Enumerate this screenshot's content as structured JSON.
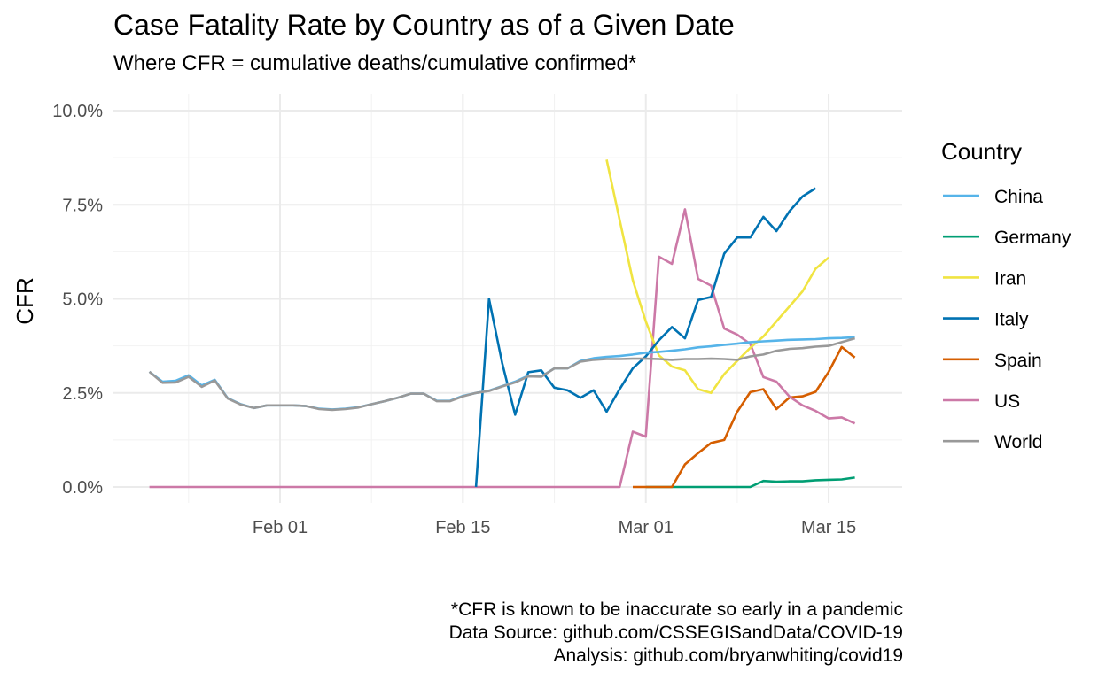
{
  "chart_data": {
    "type": "line",
    "title": "Case Fatality Rate by Country as of a Given Date",
    "subtitle": "Where CFR = cumulative deaths/cumulative confirmed*",
    "xlabel": "",
    "ylabel": "CFR",
    "x_ticks": [
      {
        "day": 32,
        "label": "Feb 01"
      },
      {
        "day": 46,
        "label": "Feb 15"
      },
      {
        "day": 60,
        "label": "Mar 01"
      },
      {
        "day": 74,
        "label": "Mar 15"
      }
    ],
    "y_ticks": [
      {
        "value": 0.0,
        "label": "0.0%"
      },
      {
        "value": 2.5,
        "label": "2.5%"
      },
      {
        "value": 5.0,
        "label": "5.0%"
      },
      {
        "value": 7.5,
        "label": "7.5%"
      },
      {
        "value": 10.0,
        "label": "10.0%"
      }
    ],
    "xlim": [
      22,
      76
    ],
    "ylim": [
      0,
      10
    ],
    "grid": true,
    "legend": {
      "title": "Country",
      "position": "right"
    },
    "x_days": [
      22,
      23,
      24,
      25,
      26,
      27,
      28,
      29,
      30,
      31,
      32,
      33,
      34,
      35,
      36,
      37,
      38,
      39,
      40,
      41,
      42,
      43,
      44,
      45,
      46,
      47,
      48,
      49,
      50,
      51,
      52,
      53,
      54,
      55,
      56,
      57,
      58,
      59,
      60,
      61,
      62,
      63,
      64,
      65,
      66,
      67,
      68,
      69,
      70,
      71,
      72,
      73,
      74,
      75,
      76
    ],
    "series": [
      {
        "name": "China",
        "color": "#56B4E9",
        "values": [
          3.06,
          2.8,
          2.82,
          2.97,
          2.7,
          2.85,
          2.36,
          2.2,
          2.1,
          2.17,
          2.17,
          2.17,
          2.15,
          2.08,
          2.06,
          2.08,
          2.12,
          2.2,
          2.28,
          2.37,
          2.48,
          2.48,
          2.29,
          2.29,
          2.42,
          2.5,
          2.56,
          2.68,
          2.8,
          2.96,
          2.94,
          3.15,
          3.15,
          3.35,
          3.42,
          3.46,
          3.48,
          3.52,
          3.57,
          3.59,
          3.62,
          3.66,
          3.71,
          3.74,
          3.78,
          3.81,
          3.85,
          3.87,
          3.89,
          3.91,
          3.92,
          3.93,
          3.95,
          3.96,
          3.98
        ]
      },
      {
        "name": "Germany",
        "color": "#009E73",
        "values": [
          null,
          null,
          null,
          null,
          null,
          null,
          null,
          null,
          null,
          null,
          null,
          null,
          null,
          null,
          null,
          null,
          null,
          null,
          null,
          null,
          null,
          null,
          null,
          null,
          null,
          null,
          null,
          null,
          null,
          null,
          null,
          null,
          null,
          null,
          null,
          null,
          null,
          null,
          0,
          0,
          0,
          0,
          0,
          0,
          0,
          0,
          0,
          0.16,
          0.14,
          0.15,
          0.15,
          0.18,
          0.19,
          0.2,
          0.25
        ]
      },
      {
        "name": "Iran",
        "color": "#F0E442",
        "values": [
          null,
          null,
          null,
          null,
          null,
          null,
          null,
          null,
          null,
          null,
          null,
          null,
          null,
          null,
          null,
          null,
          null,
          null,
          null,
          null,
          null,
          null,
          null,
          null,
          null,
          null,
          null,
          null,
          null,
          null,
          null,
          null,
          null,
          null,
          null,
          8.7,
          7.1,
          5.5,
          4.4,
          3.5,
          3.2,
          3.1,
          2.6,
          2.5,
          3.0,
          3.35,
          3.7,
          4.0,
          4.4,
          4.8,
          5.2,
          5.8,
          6.1,
          null,
          null
        ]
      },
      {
        "name": "Italy",
        "color": "#0072B2",
        "values": [
          null,
          null,
          null,
          null,
          null,
          null,
          null,
          null,
          null,
          null,
          null,
          null,
          null,
          null,
          null,
          null,
          null,
          null,
          null,
          null,
          null,
          null,
          null,
          null,
          null,
          0,
          5.0,
          3.3,
          1.92,
          3.05,
          3.1,
          2.64,
          2.57,
          2.37,
          2.57,
          2.0,
          2.6,
          3.15,
          3.47,
          3.9,
          4.25,
          3.95,
          4.97,
          5.05,
          6.2,
          6.63,
          6.63,
          7.18,
          6.8,
          7.33,
          7.72,
          7.94,
          null,
          null,
          null
        ]
      },
      {
        "name": "Spain",
        "color": "#D55E00",
        "values": [
          null,
          null,
          null,
          null,
          null,
          null,
          null,
          null,
          null,
          null,
          null,
          null,
          null,
          null,
          null,
          null,
          null,
          null,
          null,
          null,
          null,
          null,
          null,
          null,
          null,
          null,
          null,
          null,
          null,
          null,
          null,
          null,
          null,
          null,
          null,
          null,
          null,
          0,
          0,
          0,
          0,
          0.6,
          0.9,
          1.17,
          1.25,
          2.0,
          2.52,
          2.6,
          2.07,
          2.38,
          2.41,
          2.53,
          3.06,
          3.72,
          3.44
        ]
      },
      {
        "name": "US",
        "color": "#CC79A7",
        "values": [
          0,
          0,
          0,
          0,
          0,
          0,
          0,
          0,
          0,
          0,
          0,
          0,
          0,
          0,
          0,
          0,
          0,
          0,
          0,
          0,
          0,
          0,
          0,
          0,
          0,
          0,
          0,
          0,
          0,
          0,
          0,
          0,
          0,
          0,
          0,
          0,
          0,
          1.47,
          1.34,
          6.12,
          5.93,
          7.38,
          5.53,
          5.35,
          4.21,
          4.05,
          3.8,
          2.92,
          2.8,
          2.4,
          2.17,
          2.02,
          1.82,
          1.85,
          1.69
        ]
      },
      {
        "name": "World",
        "color": "#999999",
        "values": [
          3.06,
          2.77,
          2.78,
          2.93,
          2.66,
          2.83,
          2.35,
          2.19,
          2.1,
          2.17,
          2.17,
          2.17,
          2.15,
          2.07,
          2.05,
          2.07,
          2.11,
          2.2,
          2.28,
          2.37,
          2.48,
          2.48,
          2.28,
          2.28,
          2.41,
          2.5,
          2.55,
          2.67,
          2.78,
          2.94,
          2.93,
          3.15,
          3.15,
          3.33,
          3.38,
          3.4,
          3.4,
          3.41,
          3.41,
          3.4,
          3.38,
          3.4,
          3.4,
          3.41,
          3.4,
          3.38,
          3.47,
          3.52,
          3.62,
          3.67,
          3.69,
          3.73,
          3.75,
          3.85,
          3.95
        ]
      }
    ]
  },
  "caption": [
    "*CFR is known to be inaccurate so early in a pandemic",
    "Data Source: github.com/CSSEGISandData/COVID-19",
    "Analysis: github.com/bryanwhiting/covid19"
  ]
}
